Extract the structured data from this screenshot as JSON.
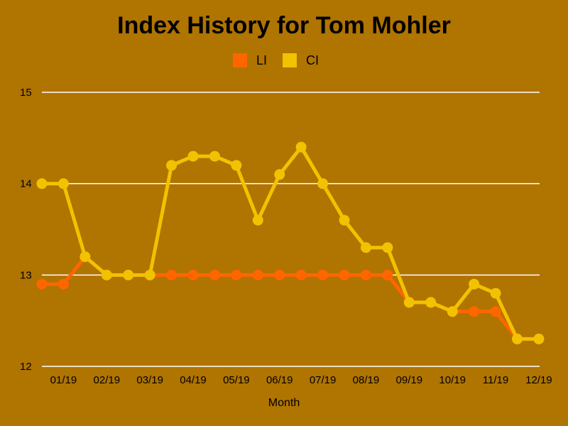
{
  "chart_data": {
    "type": "line",
    "title": "Index History for Tom Mohler",
    "xlabel": "Month",
    "ylabel": "",
    "ylim": [
      12,
      15
    ],
    "yticks": [
      "12",
      "13",
      "14",
      "15"
    ],
    "grid": true,
    "legend_position": "top-center",
    "x_tick_labels": [
      "01/19",
      "02/19",
      "03/19",
      "04/19",
      "05/19",
      "06/19",
      "07/19",
      "08/19",
      "09/19",
      "10/19",
      "11/19",
      "12/19"
    ],
    "point_count": 24,
    "series": [
      {
        "name": "LI",
        "color": "#ff6600",
        "values": [
          12.9,
          12.9,
          13.2,
          13.0,
          13.0,
          13.0,
          13.0,
          13.0,
          13.0,
          13.0,
          13.0,
          13.0,
          13.0,
          13.0,
          13.0,
          13.0,
          13.0,
          12.7,
          12.7,
          12.6,
          12.6,
          12.6,
          12.3,
          12.3
        ]
      },
      {
        "name": "CI",
        "color": "#f2c200",
        "values": [
          14.0,
          14.0,
          13.2,
          13.0,
          13.0,
          13.0,
          14.2,
          14.3,
          14.3,
          14.2,
          13.6,
          14.1,
          14.4,
          14.0,
          13.6,
          13.3,
          13.3,
          12.7,
          12.7,
          12.6,
          12.9,
          12.8,
          12.3,
          12.3
        ]
      }
    ]
  }
}
